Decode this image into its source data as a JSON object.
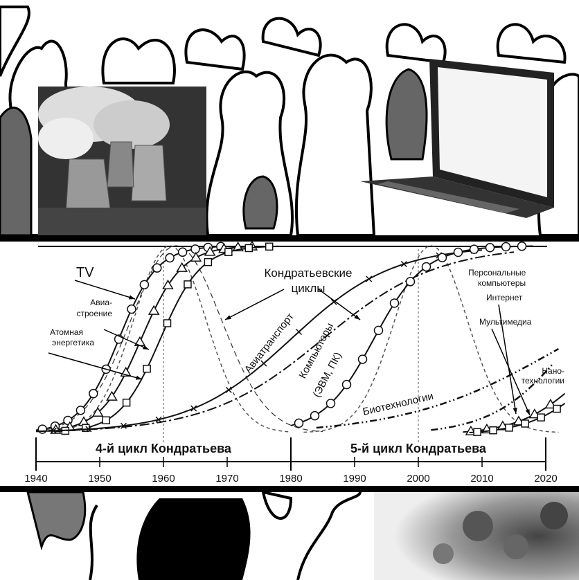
{
  "diagram": {
    "labels": {
      "tv": "TV",
      "aviation_1": "Авиа-",
      "aviation_2": "строение",
      "nuclear_1": "Атомная",
      "nuclear_2": "энергетика",
      "kondratiev_1": "Кондратьевские",
      "kondratiev_2": "циклы",
      "air_transport": "Авиатранспорт",
      "computers_1": "Компьютеры",
      "computers_2": "(ЭВМ, ПК)",
      "biotech": "Биотехнологии",
      "pc_1": "Персональные",
      "pc_2": "компьютеры",
      "internet": "Интернет",
      "multimedia": "Мультимедиа",
      "nano_1": "Нано-",
      "nano_2": "технологии"
    },
    "cycles": [
      "4-й цикл Кондратьева",
      "5-й цикл Кондратьева"
    ],
    "axis": {
      "ticks": [
        "1940",
        "1950",
        "1960",
        "1970",
        "1980",
        "1990",
        "2000",
        "2010",
        "2020"
      ]
    }
  }
}
